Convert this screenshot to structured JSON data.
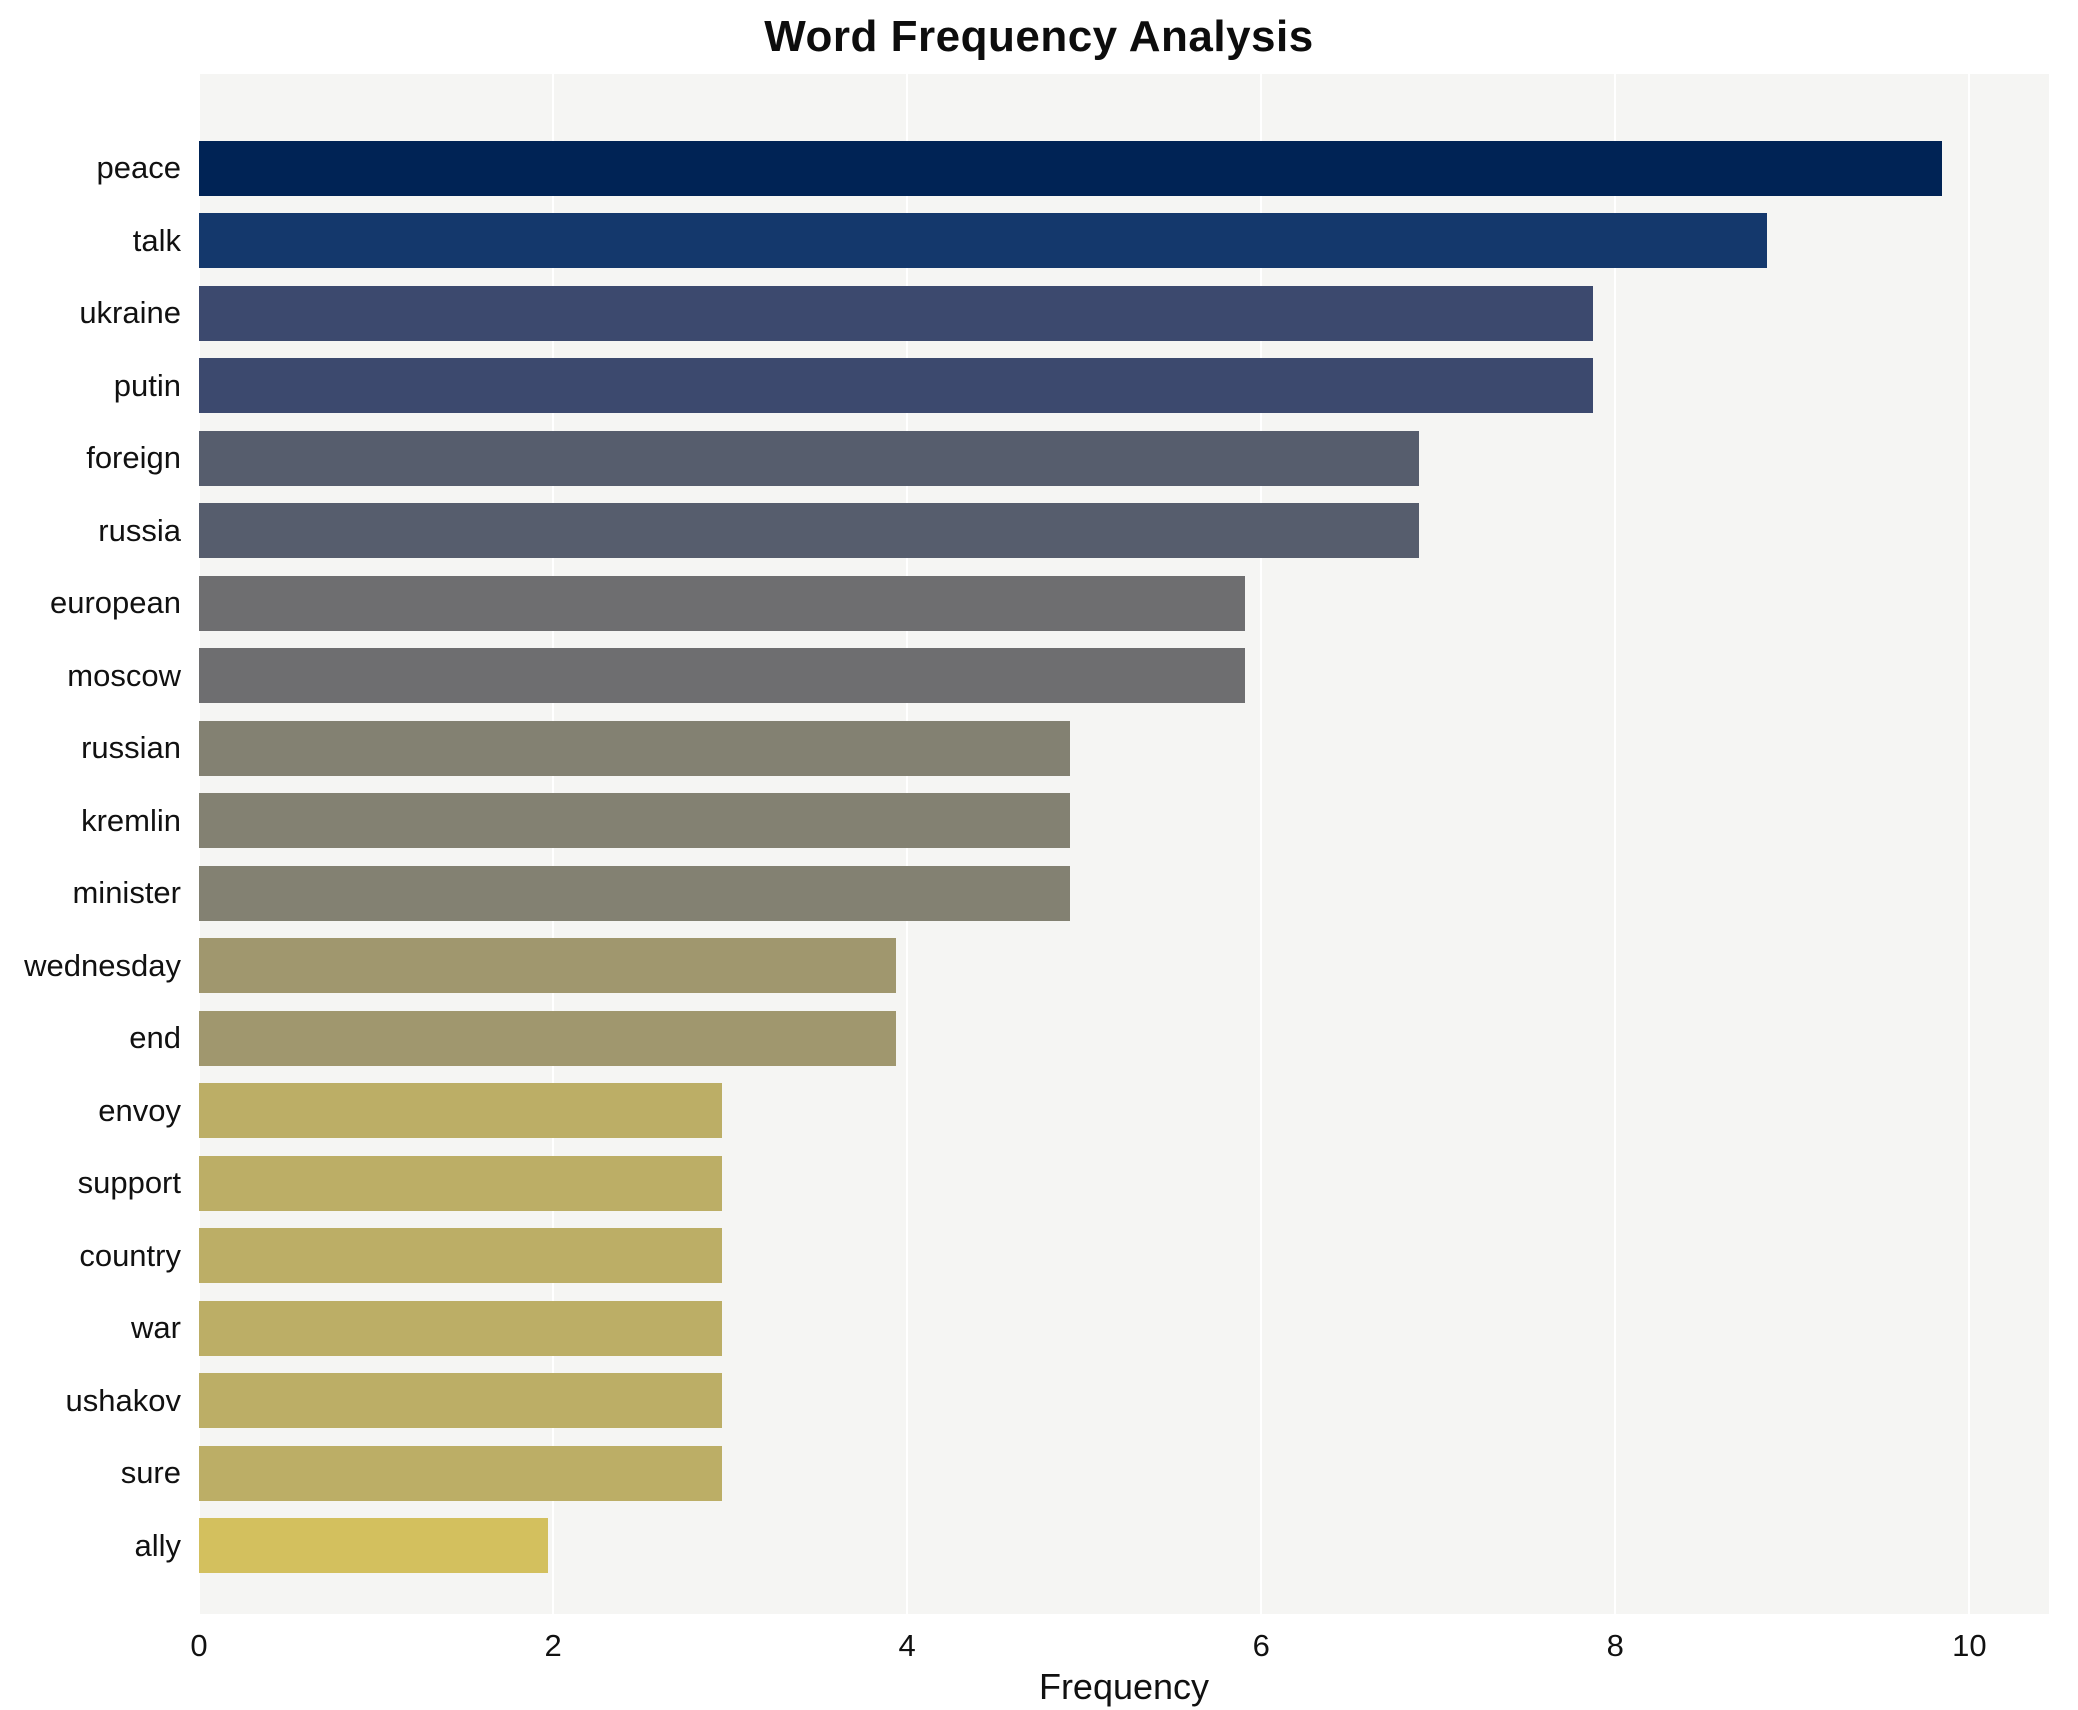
{
  "chart_data": {
    "type": "bar",
    "orientation": "horizontal",
    "title": "Word Frequency Analysis",
    "xlabel": "Frequency",
    "ylabel": "",
    "categories": [
      "peace",
      "talk",
      "ukraine",
      "putin",
      "foreign",
      "russia",
      "european",
      "moscow",
      "russian",
      "kremlin",
      "minister",
      "wednesday",
      "end",
      "envoy",
      "support",
      "country",
      "war",
      "ushakov",
      "sure",
      "ally"
    ],
    "values": [
      10,
      9,
      8,
      8,
      7,
      7,
      6,
      6,
      5,
      5,
      5,
      4,
      4,
      3,
      3,
      3,
      3,
      3,
      3,
      2
    ],
    "colors": [
      "#002355",
      "#14386c",
      "#3c496e",
      "#3c496e",
      "#565d6d",
      "#565d6d",
      "#6e6e70",
      "#6e6e70",
      "#838172",
      "#838172",
      "#838172",
      "#a0976e",
      "#a0976e",
      "#bcae66",
      "#bcae66",
      "#bcae66",
      "#bcae66",
      "#bcae66",
      "#bcae66",
      "#d3c05e"
    ],
    "ticks": [
      0,
      2,
      4,
      6,
      8,
      10
    ],
    "xlim": [
      0,
      10.45
    ],
    "grid": true,
    "legend": "none",
    "plot_background": "#f5f5f3",
    "page_background": "#ffffff"
  }
}
